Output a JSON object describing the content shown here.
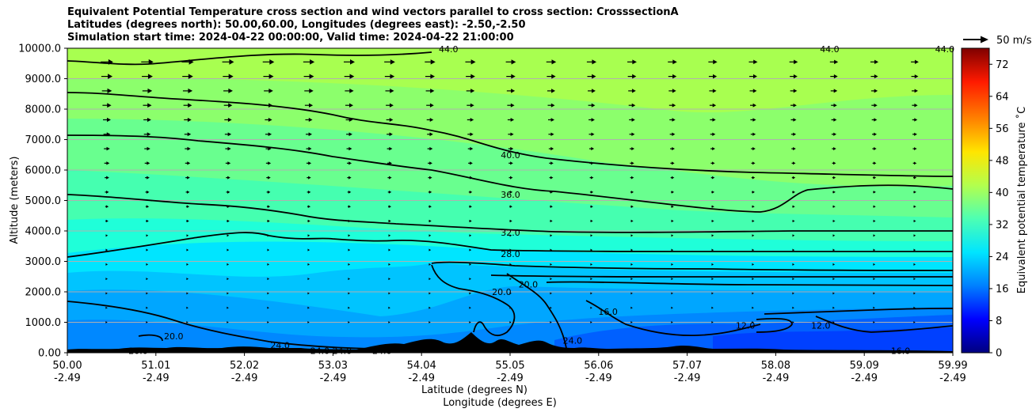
{
  "chart_data": {
    "type": "contour-cross-section",
    "title_lines": [
      "Equivalent Potential Temperature cross section and wind vectors parallel to cross section: CrosssectionA",
      "Latitudes (degrees north): 50.00,60.00, Longitudes (degrees east): -2.50,-2.50",
      "Simulation start time: 2024-04-22 00:00:00, Valid time: 2024-04-22 21:00:00"
    ],
    "ylabel": "Altitude (meters)",
    "xlabel_lat": "Latitude (degrees N)",
    "xlabel_lon": "Longitude (degrees E)",
    "y_ticks": [
      "0.00",
      "1000.0",
      "2000.0",
      "3000.0",
      "4000.0",
      "5000.0",
      "6000.0",
      "7000.0",
      "8000.0",
      "9000.0",
      "10000.0"
    ],
    "ylim": [
      0,
      10000
    ],
    "x_ticks_lat": [
      "50.00",
      "51.01",
      "52.02",
      "53.03",
      "54.04",
      "55.05",
      "56.06",
      "57.07",
      "58.08",
      "59.09",
      "59.99"
    ],
    "x_ticks_lon": [
      "-2.49",
      "-2.49",
      "-2.49",
      "-2.49",
      "-2.49",
      "-2.49",
      "-2.49",
      "-2.49",
      "-2.49",
      "-2.49",
      "-2.49"
    ],
    "xlim_lat": [
      50.0,
      59.99
    ],
    "colorbar": {
      "label": "Equivalent potential temperature ˚C",
      "ticks": [
        "0",
        "8",
        "16",
        "24",
        "32",
        "40",
        "48",
        "56",
        "64",
        "72"
      ],
      "range": [
        0,
        76
      ],
      "stops": [
        "#00007f",
        "#0000ff",
        "#0080ff",
        "#00e5ff",
        "#4dffb3",
        "#b3ff4d",
        "#ffe500",
        "#ff8000",
        "#ff1a00",
        "#7f0000"
      ]
    },
    "quiver_key": "50 m/s",
    "contour_labels": [
      {
        "text": "40.0",
        "lat": 55.0,
        "alt": 6500
      },
      {
        "text": "36.0",
        "lat": 55.0,
        "alt": 5200
      },
      {
        "text": "32.0",
        "lat": 55.0,
        "alt": 3950
      },
      {
        "text": "28.0",
        "lat": 55.0,
        "alt": 3250
      },
      {
        "text": "20.0",
        "lat": 55.2,
        "alt": 2250
      },
      {
        "text": "20.0",
        "lat": 54.9,
        "alt": 2000
      },
      {
        "text": "16.0",
        "lat": 56.1,
        "alt": 1350
      },
      {
        "text": "12.0",
        "lat": 57.65,
        "alt": 900
      },
      {
        "text": "12.0",
        "lat": 58.5,
        "alt": 900
      },
      {
        "text": "16.0",
        "lat": 59.4,
        "alt": 60
      },
      {
        "text": "20.0",
        "lat": 51.2,
        "alt": 550
      },
      {
        "text": "20.0",
        "lat": 50.8,
        "alt": 60
      },
      {
        "text": "24.0",
        "lat": 52.4,
        "alt": 250
      },
      {
        "text": "24.0",
        "lat": 52.85,
        "alt": 60
      },
      {
        "text": "24.0",
        "lat": 53.1,
        "alt": 60
      },
      {
        "text": "24.0",
        "lat": 53.55,
        "alt": 60
      },
      {
        "text": "24.0",
        "lat": 55.7,
        "alt": 400
      },
      {
        "text": "44.0",
        "lat": 54.3,
        "alt": 9980
      },
      {
        "text": "44.0",
        "lat": 58.6,
        "alt": 9980
      },
      {
        "text": "44.0",
        "lat": 59.9,
        "alt": 9980
      }
    ],
    "contour_levels": [
      12,
      16,
      20,
      24,
      28,
      32,
      36,
      40,
      44
    ]
  }
}
